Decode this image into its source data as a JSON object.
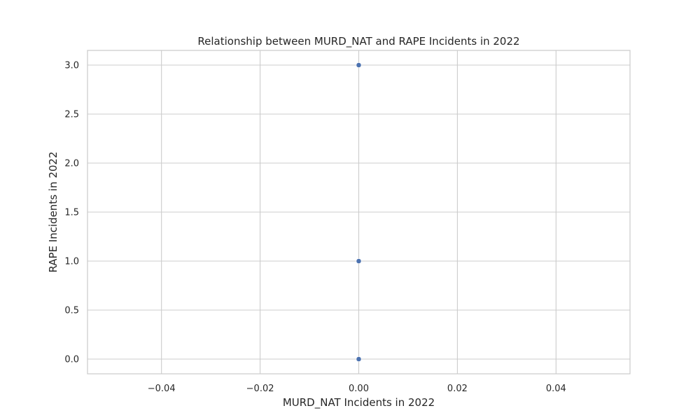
{
  "chart_data": {
    "type": "scatter",
    "title": "Relationship between MURD_NAT and RAPE Incidents in 2022",
    "xlabel": "MURD_NAT Incidents in 2022",
    "ylabel": "RAPE Incidents in 2022",
    "xlim": [
      -0.055,
      0.055
    ],
    "ylim": [
      -0.15,
      3.15
    ],
    "xticks": [
      -0.04,
      -0.02,
      0.0,
      0.02,
      0.04
    ],
    "xtick_labels": [
      "−0.04",
      "−0.02",
      "0.00",
      "0.02",
      "0.04"
    ],
    "yticks": [
      0.0,
      0.5,
      1.0,
      1.5,
      2.0,
      2.5,
      3.0
    ],
    "ytick_labels": [
      "0.0",
      "0.5",
      "1.0",
      "1.5",
      "2.0",
      "2.5",
      "3.0"
    ],
    "grid": true,
    "point_color": "#4c72b0",
    "points": [
      {
        "x": 0.0,
        "y": 3.0
      },
      {
        "x": 0.0,
        "y": 1.0
      },
      {
        "x": 0.0,
        "y": 0.0
      }
    ]
  }
}
